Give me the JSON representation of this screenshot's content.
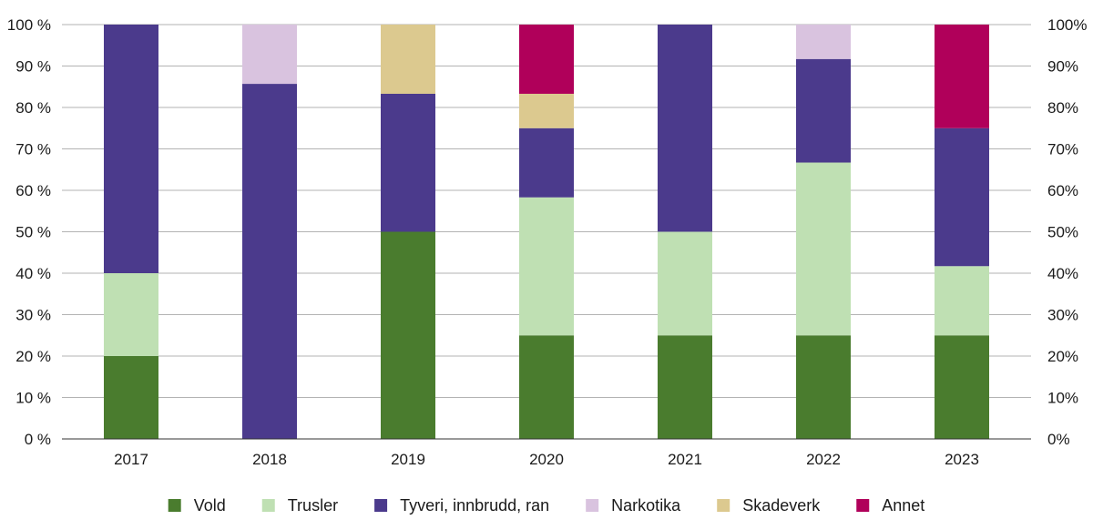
{
  "chart_data": {
    "type": "bar",
    "stacked": true,
    "categories": [
      "2017",
      "2018",
      "2019",
      "2020",
      "2021",
      "2022",
      "2023"
    ],
    "series": [
      {
        "name": "Vold",
        "color": "#4a7c2e",
        "values": [
          20,
          0,
          50,
          25,
          25,
          25,
          25
        ]
      },
      {
        "name": "Trusler",
        "color": "#bfe0b3",
        "values": [
          20,
          0,
          0,
          33.3,
          25,
          41.7,
          16.7
        ]
      },
      {
        "name": "Tyveri, innbrudd, ran",
        "color": "#4b3a8c",
        "values": [
          60,
          85.7,
          33.3,
          16.7,
          50,
          25,
          33.3
        ]
      },
      {
        "name": "Narkotika",
        "color": "#d9c3df",
        "values": [
          0,
          14.3,
          0,
          0,
          0,
          8.3,
          0
        ]
      },
      {
        "name": "Skadeverk",
        "color": "#dcc98f",
        "values": [
          0,
          0,
          16.7,
          8.3,
          0,
          0,
          0
        ]
      },
      {
        "name": "Annet",
        "color": "#b0005a",
        "values": [
          0,
          0,
          0,
          16.7,
          0,
          0,
          25
        ]
      }
    ],
    "ylim": [
      0,
      100
    ],
    "left_ticks": [
      "0 %",
      "10 %",
      "20 %",
      "30 %",
      "40 %",
      "50 %",
      "60 %",
      "70 %",
      "80 %",
      "90 %",
      "100 %"
    ],
    "right_ticks": [
      "0%",
      "10%",
      "20%",
      "30%",
      "40%",
      "50%",
      "60%",
      "70%",
      "80%",
      "90%",
      "100%"
    ],
    "grid": true,
    "legend_position": "bottom"
  }
}
